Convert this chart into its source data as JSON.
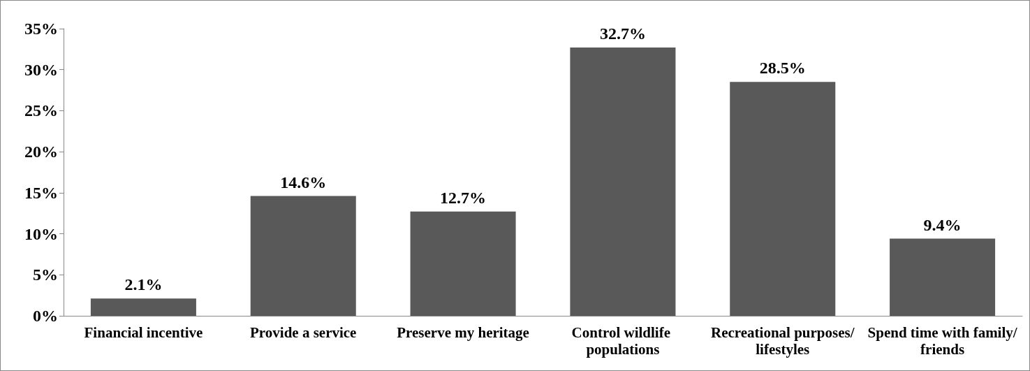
{
  "chart_data": {
    "type": "bar",
    "categories": [
      "Financial incentive",
      "Provide a service",
      "Preserve my heritage",
      "Control wildlife populations",
      "Recreational purposes/lifestyles",
      "Spend time with family/friends"
    ],
    "values": [
      2.1,
      14.6,
      12.7,
      32.7,
      28.5,
      9.4
    ],
    "value_labels": [
      "2.1%",
      "14.6%",
      "12.7%",
      "32.7%",
      "28.5%",
      "9.4%"
    ],
    "color": "#595959",
    "ylim": [
      0,
      35
    ],
    "yticks": [
      {
        "value": 0,
        "label": "0%"
      },
      {
        "value": 5,
        "label": "5%"
      },
      {
        "value": 10,
        "label": "10%"
      },
      {
        "value": 15,
        "label": "15%"
      },
      {
        "value": 20,
        "label": "20%"
      },
      {
        "value": 25,
        "label": "25%"
      },
      {
        "value": 30,
        "label": "30%"
      },
      {
        "value": 35,
        "label": "35%"
      }
    ],
    "grid": false
  }
}
